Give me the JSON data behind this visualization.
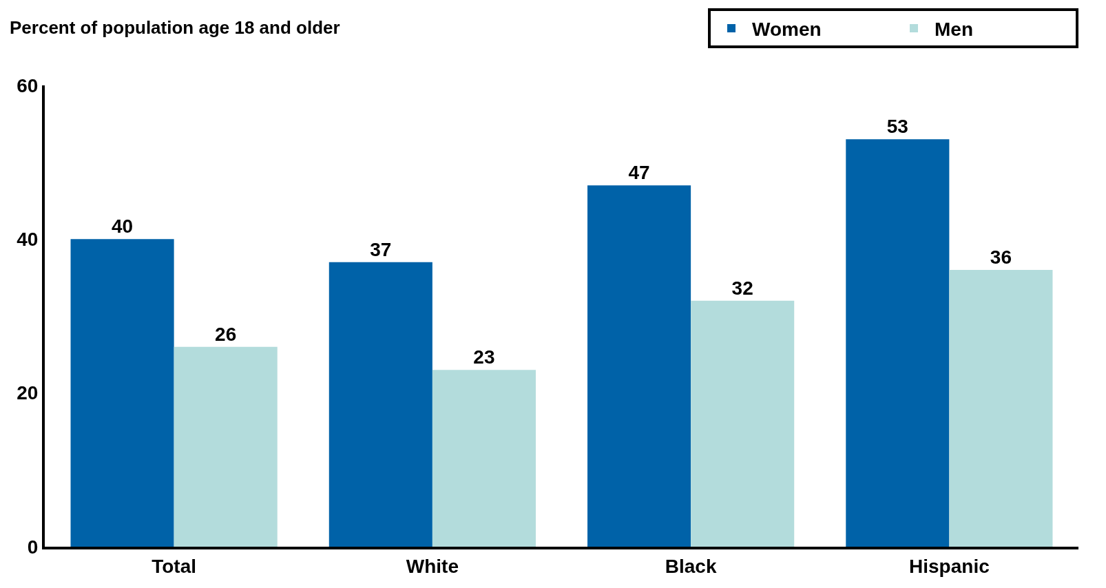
{
  "chart_data": {
    "type": "bar",
    "ylabel": "Percent of population age 18 and older",
    "categories": [
      "Total",
      "White",
      "Black",
      "Hispanic"
    ],
    "series": [
      {
        "name": "Women",
        "color": "#0062a8",
        "values": [
          40,
          37,
          47,
          53
        ]
      },
      {
        "name": "Men",
        "color": "#b3dcdc",
        "values": [
          26,
          23,
          32,
          36
        ]
      }
    ],
    "ylim": [
      0,
      60
    ],
    "yticks": [
      0,
      20,
      40,
      60
    ],
    "grid": false,
    "legend": "top right",
    "data_labels": true
  }
}
